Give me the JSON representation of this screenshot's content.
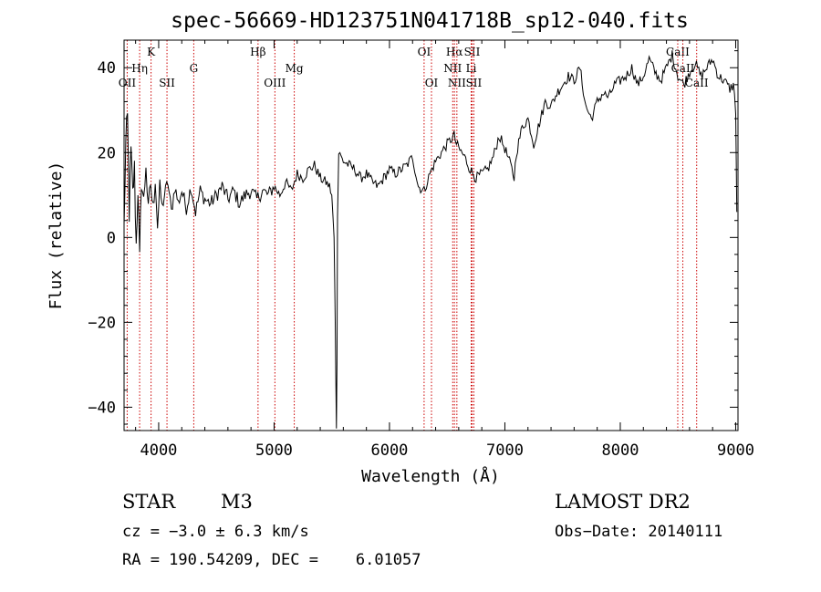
{
  "chart_data": {
    "type": "line",
    "title": "spec-56669-HD123751N041718B_sp12-040.fits",
    "xlabel": "Wavelength (Å)",
    "ylabel": "Flux (relative)",
    "xlim": [
      3700,
      9020
    ],
    "ylim": [
      -45.5,
      46.5
    ],
    "xticks": [
      4000,
      5000,
      6000,
      7000,
      8000,
      9000
    ],
    "yticks": [
      -40,
      -20,
      0,
      20,
      40
    ],
    "grid": false,
    "line_color": "#000000",
    "marker_color": "#cc0000",
    "series": [
      {
        "x": [
          3700,
          3715,
          3730,
          3745,
          3760,
          3775,
          3790,
          3805,
          3820,
          3835,
          3850,
          3870,
          3890,
          3910,
          3930,
          3950,
          3970,
          3990,
          4010,
          4030,
          4050,
          4080,
          4110,
          4140,
          4170,
          4200,
          4240,
          4280,
          4320,
          4360,
          4400,
          4450,
          4500,
          4550,
          4600,
          4650,
          4700,
          4750,
          4800,
          4850,
          4900,
          4950,
          5000,
          5050,
          5100,
          5150,
          5200,
          5250,
          5300,
          5350,
          5400,
          5450,
          5480,
          5500,
          5520,
          5530,
          5540,
          5545,
          5550,
          5560,
          5580,
          5600,
          5650,
          5700,
          5750,
          5800,
          5850,
          5900,
          5950,
          6000,
          6050,
          6100,
          6150,
          6200,
          6250,
          6300,
          6350,
          6400,
          6450,
          6500,
          6530,
          6560,
          6580,
          6600,
          6650,
          6700,
          6750,
          6800,
          6850,
          6900,
          6950,
          7000,
          7050,
          7080,
          7100,
          7150,
          7200,
          7250,
          7300,
          7350,
          7400,
          7450,
          7500,
          7550,
          7600,
          7650,
          7700,
          7750,
          7800,
          7850,
          7900,
          7950,
          8000,
          8050,
          8100,
          8150,
          8200,
          8250,
          8300,
          8350,
          8400,
          8450,
          8500,
          8550,
          8600,
          8650,
          8700,
          8750,
          8800,
          8850,
          8900,
          8950,
          8980,
          9000,
          9010
        ],
        "y": [
          2,
          22,
          28,
          6,
          20,
          10,
          16,
          -2,
          12,
          -6,
          14,
          8,
          18,
          5,
          13,
          6,
          15,
          3,
          12,
          7,
          10,
          13,
          6,
          12,
          8,
          11,
          7,
          12,
          6,
          11,
          9,
          8,
          10,
          12,
          9,
          11,
          8,
          10,
          11,
          9,
          11,
          10,
          12,
          10,
          13,
          11,
          15,
          14,
          16,
          17,
          14,
          13,
          12,
          10,
          0,
          -20,
          -45,
          -30,
          5,
          20,
          19,
          18,
          17,
          16,
          14,
          15,
          13,
          12,
          14,
          16,
          15,
          16,
          17,
          19,
          12,
          11,
          15,
          18,
          20,
          22,
          23,
          24,
          22,
          21,
          19,
          16,
          14,
          15,
          16,
          19,
          24,
          21,
          17,
          14,
          20,
          26,
          28,
          22,
          27,
          32,
          31,
          34,
          36,
          38,
          37,
          40,
          31,
          28,
          32,
          34,
          33,
          36,
          37,
          38,
          40,
          36,
          38,
          42,
          39,
          37,
          40,
          43,
          38,
          36,
          39,
          41,
          38,
          40,
          42,
          38,
          37,
          35,
          36,
          30,
          6
        ]
      }
    ],
    "line_markers": [
      {
        "x": 3727,
        "label": "OII",
        "row": 3
      },
      {
        "x": 3835,
        "label": "Hη",
        "row": 2
      },
      {
        "x": 3934,
        "label": "K",
        "row": 1
      },
      {
        "x": 4072,
        "label": "SII",
        "row": 3
      },
      {
        "x": 4304,
        "label": "G",
        "row": 2
      },
      {
        "x": 4861,
        "label": "Hβ",
        "row": 1
      },
      {
        "x": 5007,
        "label": "OIII",
        "row": 3
      },
      {
        "x": 5175,
        "label": "Mg",
        "row": 2
      },
      {
        "x": 6300,
        "label": "OI",
        "row": 1
      },
      {
        "x": 6364,
        "label": "OI",
        "row": 3
      },
      {
        "x": 6548,
        "label": "NII",
        "row": 2
      },
      {
        "x": 6563,
        "label": "Hα",
        "row": 1
      },
      {
        "x": 6584,
        "label": "NII",
        "row": 3
      },
      {
        "x": 6708,
        "label": "Li",
        "row": 2
      },
      {
        "x": 6716,
        "label": "SII",
        "row": 1
      },
      {
        "x": 6731,
        "label": "SII",
        "row": 3
      },
      {
        "x": 8498,
        "label": "CaII",
        "row": 1
      },
      {
        "x": 8542,
        "label": "CaII",
        "row": 2
      },
      {
        "x": 8662,
        "label": "CaII",
        "row": 3
      }
    ]
  },
  "info": {
    "class_label": "STAR",
    "subclass": "M3",
    "survey": "LAMOST DR2",
    "cz": "cz = −3.0 ± 6.3 km/s",
    "obs_date": "Obs−Date: 20140111",
    "coords": "RA = 190.54209, DEC =    6.01057"
  }
}
